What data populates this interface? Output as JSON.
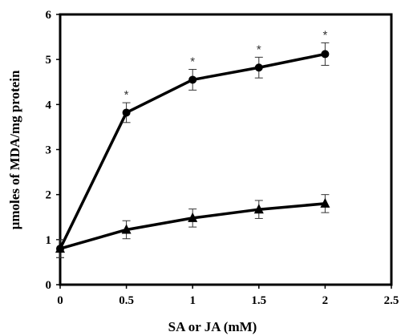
{
  "chart_data": {
    "type": "line",
    "xlabel": "SA or JA (mM)",
    "ylabel": "µmoles of MDA/mg protein",
    "xlim": [
      0,
      2.5
    ],
    "ylim": [
      0,
      6
    ],
    "xticks": [
      "0",
      "0.5",
      "1",
      "1.5",
      "2",
      "2.5"
    ],
    "yticks": [
      "0",
      "1",
      "2",
      "3",
      "4",
      "5",
      "6"
    ],
    "grid": false,
    "series": [
      {
        "marker": "circle",
        "x": [
          0,
          0.5,
          1,
          1.5,
          2
        ],
        "y": [
          0.8,
          3.82,
          4.55,
          4.82,
          5.12
        ],
        "err": [
          0.2,
          0.22,
          0.23,
          0.23,
          0.25
        ],
        "annotations": [
          "",
          "*",
          "*",
          "*",
          "*"
        ]
      },
      {
        "marker": "triangle",
        "x": [
          0,
          0.5,
          1,
          1.5,
          2
        ],
        "y": [
          0.8,
          1.22,
          1.48,
          1.67,
          1.8
        ],
        "err": [
          0.2,
          0.2,
          0.2,
          0.2,
          0.2
        ],
        "annotations": [
          "",
          "",
          "",
          "",
          ""
        ]
      }
    ]
  }
}
